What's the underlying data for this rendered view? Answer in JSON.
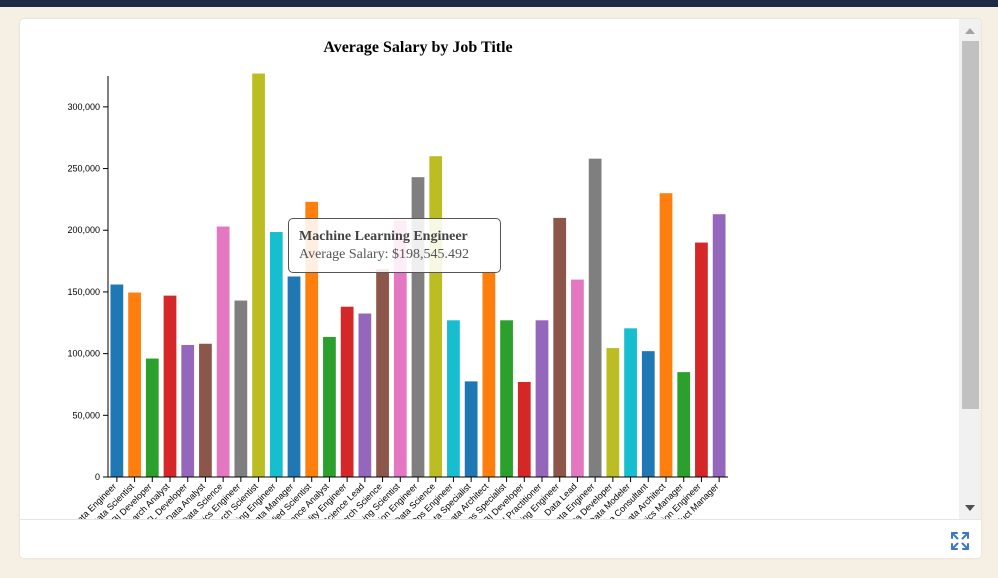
{
  "chart_data": {
    "type": "bar",
    "title": "Average Salary by Job Title",
    "xlabel": "",
    "ylabel": "",
    "ylim": [
      0,
      325000
    ],
    "yticks": [
      0,
      50000,
      100000,
      150000,
      200000,
      250000,
      300000
    ],
    "ytick_labels": [
      "0",
      "50,000",
      "100,000",
      "150,000",
      "200,000",
      "250,000",
      "300,000"
    ],
    "categories": [
      "Data Engineer",
      "Data Scientist",
      "BI Developer",
      "Research Analyst",
      "ETL Developer",
      "Data Analyst",
      "Data Science",
      "Analytics Engineer",
      "Research Scientist",
      "Machine Learning Engineer",
      "Data Manager",
      "Applied Scientist",
      "Data Science Analyst",
      "Data Quality Engineer",
      "Data Science Lead",
      "Data Research Science",
      "Machine Learning Scientist",
      "Computer Vision Engineer",
      "Head of Data Science",
      "Data DevOps Engineer",
      "Data Specialist",
      "Data Architect",
      "Data Operations Specialist",
      "Power BI Developer",
      "AI Practitioner",
      "Deep Learning Engineer",
      "Data Lead",
      "Cloud Data Engineer",
      "Data Developer",
      "Data Modeler",
      "Data Consultant",
      "Principal Data Architect",
      "Data Analytics Manager",
      "Data Integration Engineer",
      "Data Product Manager"
    ],
    "values": [
      156000,
      149500,
      96000,
      147000,
      107000,
      108000,
      203000,
      143000,
      327000,
      198545,
      162500,
      223000,
      113500,
      138000,
      132500,
      168500,
      208000,
      243000,
      260000,
      127000,
      77500,
      166500,
      127000,
      77000,
      127000,
      210000,
      160000,
      258000,
      104500,
      120500,
      102000,
      230000,
      85000,
      190000,
      213000
    ],
    "colors": [
      "#1f77b4",
      "#ff7f0e",
      "#2ca02c",
      "#d62728",
      "#9467bd",
      "#8c564b",
      "#e377c2",
      "#7f7f7f",
      "#bcbd22",
      "#17becf"
    ],
    "tooltip": {
      "title": "Machine Learning Engineer",
      "text": "Average Salary: $198,545.492"
    },
    "grid": false,
    "legend": "none"
  },
  "ui": {
    "expand_icon": "expand-arrows-icon"
  }
}
